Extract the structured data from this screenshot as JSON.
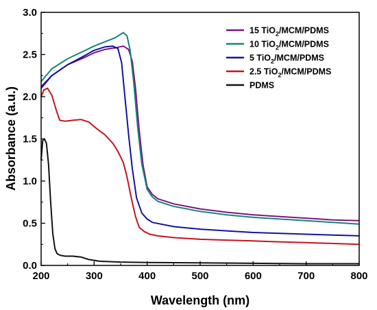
{
  "chart_data": {
    "type": "line",
    "title": "",
    "xlabel": "Wavelength (nm)",
    "ylabel": "Absorbance (a.u.)",
    "xlim": [
      200,
      800
    ],
    "ylim": [
      0.0,
      3.0
    ],
    "xticks": [
      200,
      300,
      400,
      500,
      600,
      700,
      800
    ],
    "yticks": [
      0.0,
      0.5,
      1.0,
      1.5,
      2.0,
      2.5,
      3.0
    ],
    "xtick_labels": [
      "200",
      "300",
      "400",
      "500",
      "600",
      "700",
      "800"
    ],
    "ytick_labels": [
      "0.0",
      "0.5",
      "1.0",
      "1.5",
      "2.0",
      "2.5",
      "3.0"
    ],
    "grid": false,
    "legend_position": "top-right",
    "series": [
      {
        "label_main": "15 TiO",
        "label_sub": "2",
        "label_rest": "/MCM/PDMS",
        "color": "#7b1480",
        "x": [
          200,
          220,
          250,
          280,
          300,
          320,
          340,
          355,
          365,
          372,
          378,
          385,
          392,
          400,
          410,
          420,
          450,
          500,
          550,
          600,
          650,
          700,
          750,
          800
        ],
        "y": [
          2.12,
          2.25,
          2.38,
          2.46,
          2.52,
          2.56,
          2.58,
          2.6,
          2.56,
          2.42,
          2.1,
          1.6,
          1.2,
          0.93,
          0.84,
          0.79,
          0.73,
          0.67,
          0.63,
          0.6,
          0.58,
          0.56,
          0.54,
          0.53
        ]
      },
      {
        "label_main": "10 TiO",
        "label_sub": "2",
        "label_rest": "/MCM/PDMS",
        "color": "#13857a",
        "x": [
          200,
          220,
          250,
          280,
          300,
          320,
          340,
          355,
          362,
          368,
          375,
          382,
          390,
          400,
          410,
          420,
          450,
          500,
          550,
          600,
          650,
          700,
          750,
          800
        ],
        "y": [
          2.18,
          2.33,
          2.45,
          2.54,
          2.6,
          2.65,
          2.7,
          2.76,
          2.72,
          2.55,
          2.15,
          1.65,
          1.2,
          0.9,
          0.81,
          0.76,
          0.7,
          0.64,
          0.6,
          0.57,
          0.55,
          0.53,
          0.51,
          0.49
        ]
      },
      {
        "label_main": "5 TiO",
        "label_sub": "2",
        "label_rest": "/MCM/PDMS",
        "color": "#1212a0",
        "x": [
          200,
          220,
          250,
          280,
          300,
          320,
          335,
          345,
          352,
          358,
          365,
          372,
          380,
          390,
          400,
          410,
          450,
          500,
          550,
          600,
          650,
          700,
          750,
          800
        ],
        "y": [
          2.1,
          2.25,
          2.38,
          2.48,
          2.55,
          2.59,
          2.6,
          2.57,
          2.4,
          2.0,
          1.55,
          1.15,
          0.8,
          0.62,
          0.55,
          0.51,
          0.46,
          0.43,
          0.41,
          0.39,
          0.38,
          0.37,
          0.36,
          0.35
        ]
      },
      {
        "label_main": "2.5 TiO",
        "label_sub": "2",
        "label_rest": "/MCM/PDMS",
        "color": "#c4141c",
        "x": [
          200,
          205,
          212,
          220,
          228,
          235,
          245,
          260,
          275,
          290,
          305,
          320,
          335,
          345,
          355,
          362,
          370,
          378,
          385,
          395,
          405,
          420,
          450,
          500,
          550,
          600,
          650,
          700,
          750,
          800
        ],
        "y": [
          2.0,
          2.08,
          2.1,
          2.02,
          1.85,
          1.72,
          1.71,
          1.72,
          1.73,
          1.7,
          1.62,
          1.55,
          1.45,
          1.35,
          1.22,
          1.05,
          0.8,
          0.58,
          0.45,
          0.4,
          0.37,
          0.35,
          0.33,
          0.31,
          0.3,
          0.29,
          0.28,
          0.27,
          0.26,
          0.25
        ]
      },
      {
        "label_main": "PDMS",
        "label_sub": "",
        "label_rest": "",
        "color": "#111111",
        "x": [
          200,
          203,
          206,
          210,
          214,
          218,
          222,
          226,
          230,
          236,
          245,
          260,
          275,
          290,
          310,
          350,
          400,
          500,
          600,
          700,
          800
        ],
        "y": [
          1.25,
          1.48,
          1.5,
          1.45,
          1.2,
          0.75,
          0.38,
          0.2,
          0.14,
          0.12,
          0.11,
          0.11,
          0.1,
          0.07,
          0.05,
          0.04,
          0.035,
          0.03,
          0.025,
          0.02,
          0.02
        ]
      }
    ]
  }
}
